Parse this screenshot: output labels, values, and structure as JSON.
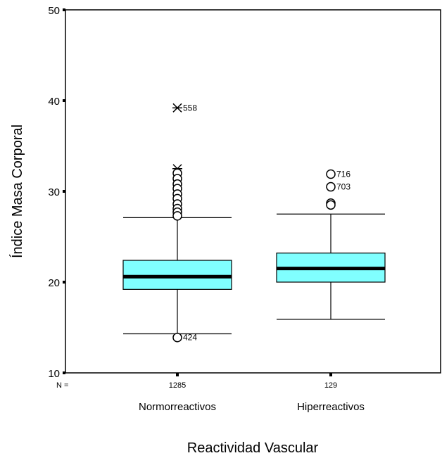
{
  "chart_data": {
    "type": "boxplot",
    "title": "",
    "xlabel": "Reactividad Vascular",
    "ylabel": "Índice Masa Corporal",
    "ylim": [
      10,
      50
    ],
    "yticks": [
      10,
      20,
      30,
      40,
      50
    ],
    "n_prefix": "N =",
    "groups": [
      {
        "name": "Normorreactivos",
        "n": "1285",
        "q1": 19.2,
        "median": 20.6,
        "q3": 22.4,
        "whisker_low": 14.3,
        "whisker_high": 27.1,
        "outliers": [
          {
            "value": 39.2,
            "label": "558",
            "marker": "extreme"
          },
          {
            "value": 32.5,
            "label": "",
            "marker": "extreme"
          },
          {
            "value": 32.0,
            "label": "",
            "marker": "circle"
          },
          {
            "value": 31.4,
            "label": "",
            "marker": "circle"
          },
          {
            "value": 30.8,
            "label": "",
            "marker": "circle"
          },
          {
            "value": 30.3,
            "label": "",
            "marker": "circle"
          },
          {
            "value": 29.7,
            "label": "",
            "marker": "circle"
          },
          {
            "value": 29.2,
            "label": "",
            "marker": "circle"
          },
          {
            "value": 28.6,
            "label": "",
            "marker": "circle"
          },
          {
            "value": 28.1,
            "label": "",
            "marker": "circle"
          },
          {
            "value": 27.7,
            "label": "",
            "marker": "circle"
          },
          {
            "value": 27.3,
            "label": "",
            "marker": "circle"
          },
          {
            "value": 13.9,
            "label": "424",
            "marker": "circle"
          }
        ]
      },
      {
        "name": "Hiperreactivos",
        "n": "129",
        "q1": 20.0,
        "median": 21.5,
        "q3": 23.2,
        "whisker_low": 15.9,
        "whisker_high": 27.5,
        "outliers": [
          {
            "value": 31.9,
            "label": "716",
            "marker": "circle"
          },
          {
            "value": 30.5,
            "label": "703",
            "marker": "circle"
          },
          {
            "value": 28.7,
            "label": "",
            "marker": "circle"
          },
          {
            "value": 28.5,
            "label": "",
            "marker": "circle"
          }
        ]
      }
    ],
    "box_color": "#80ffff",
    "grid": false,
    "legend": "none"
  }
}
